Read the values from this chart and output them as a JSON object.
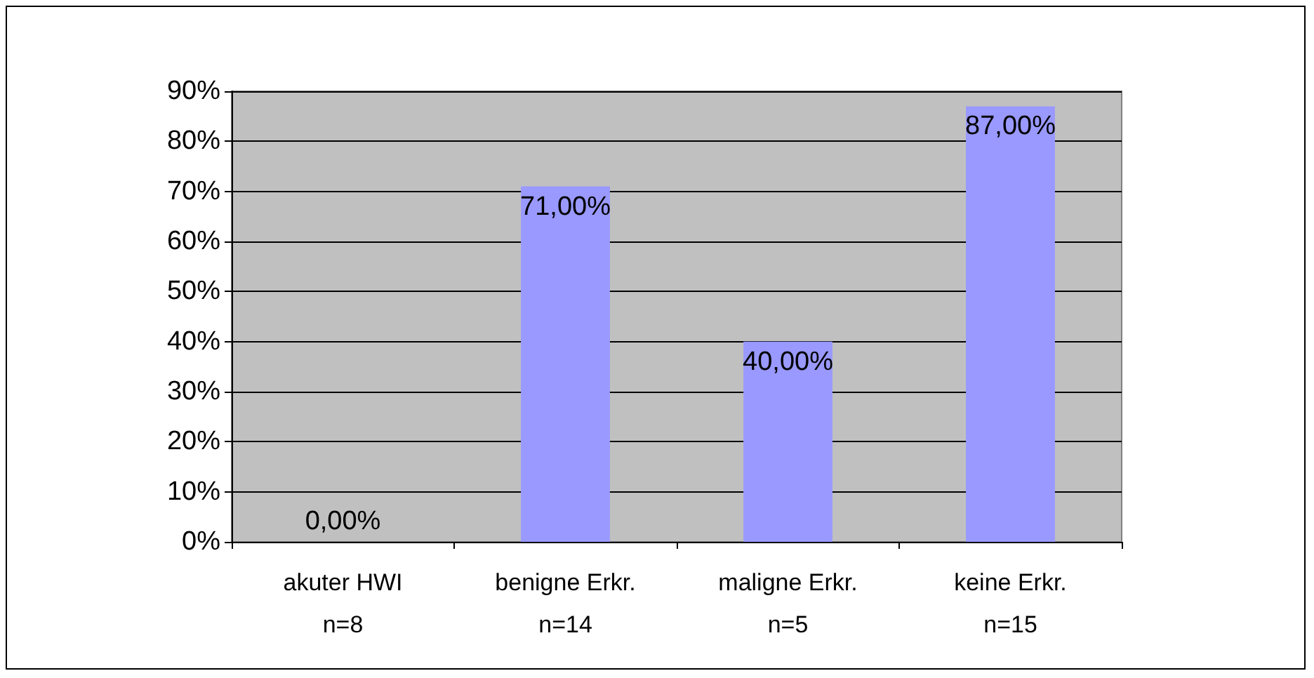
{
  "chart_data": {
    "type": "bar",
    "categories": [
      "akuter HWI\nn=8",
      "benigne Erkr.\nn=14",
      "maligne Erkr.\nn=5",
      "keine Erkr.\nn=15"
    ],
    "values": [
      0,
      71,
      40,
      87
    ],
    "value_labels": [
      "0,00%",
      "71,00%",
      "40,00%",
      "87,00%"
    ],
    "color": "#9999ff",
    "ylim": [
      0,
      90
    ],
    "yticks": [
      {
        "value": 0,
        "label": "0%"
      },
      {
        "value": 10,
        "label": "10%"
      },
      {
        "value": 20,
        "label": "20%"
      },
      {
        "value": 30,
        "label": "30%"
      },
      {
        "value": 40,
        "label": "40%"
      },
      {
        "value": 50,
        "label": "50%"
      },
      {
        "value": 60,
        "label": "60%"
      },
      {
        "value": 70,
        "label": "70%"
      },
      {
        "value": 80,
        "label": "80%"
      },
      {
        "value": 90,
        "label": "90%"
      }
    ],
    "grid": "y"
  }
}
